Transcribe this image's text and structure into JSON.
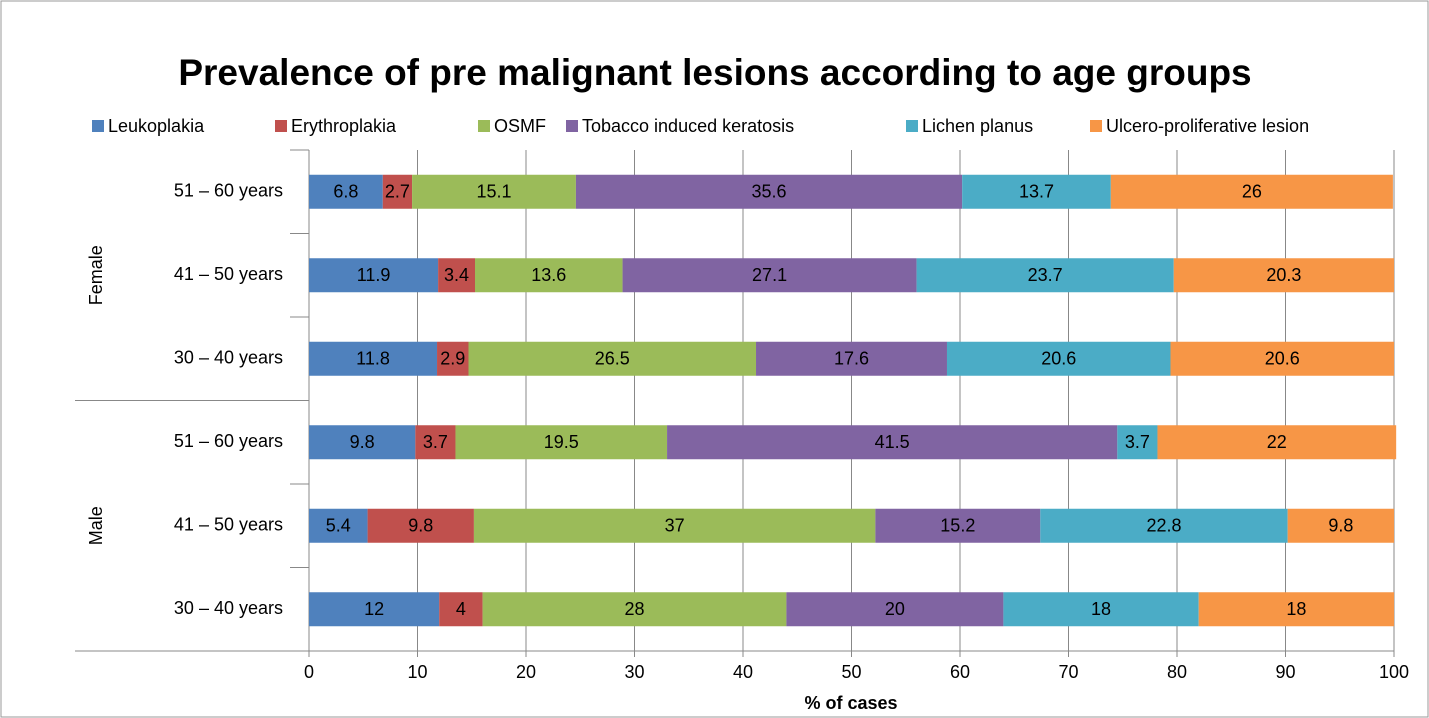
{
  "chart_data": {
    "type": "stacked_barh",
    "title": "Prevalence of pre malignant lesions according to age groups",
    "xlabel": "% of cases",
    "groups": [
      {
        "name": "Female",
        "categories": [
          "51 – 60 years",
          "41 – 50 years",
          "30 – 40 years"
        ]
      },
      {
        "name": "Male",
        "categories": [
          "51 – 60 years",
          "41 – 50 years",
          "30 – 40 years"
        ]
      }
    ],
    "series": [
      {
        "name": "Leukoplakia",
        "color": "#4f81bd",
        "values": [
          6.8,
          11.9,
          11.8,
          9.8,
          5.4,
          12
        ]
      },
      {
        "name": "Erythroplakia",
        "color": "#c0504d",
        "values": [
          2.7,
          3.4,
          2.9,
          3.7,
          9.8,
          4
        ]
      },
      {
        "name": "OSMF",
        "color": "#9bbb59",
        "values": [
          15.1,
          13.6,
          26.5,
          19.5,
          37,
          28
        ]
      },
      {
        "name": "Tobacco induced keratosis",
        "color": "#8064a2",
        "values": [
          35.6,
          27.1,
          17.6,
          41.5,
          15.2,
          20
        ]
      },
      {
        "name": "Lichen planus",
        "color": "#4bacc6",
        "values": [
          13.7,
          23.7,
          20.6,
          3.7,
          22.8,
          18
        ]
      },
      {
        "name": "Ulcero-proliferative lesion",
        "color": "#f79646",
        "values": [
          26,
          20.3,
          20.6,
          22,
          9.8,
          18
        ]
      }
    ],
    "xlim": [
      0,
      100
    ],
    "xticks": [
      0,
      10,
      20,
      30,
      40,
      50,
      60,
      70,
      80,
      90,
      100
    ],
    "grid": true,
    "legend": "top"
  }
}
